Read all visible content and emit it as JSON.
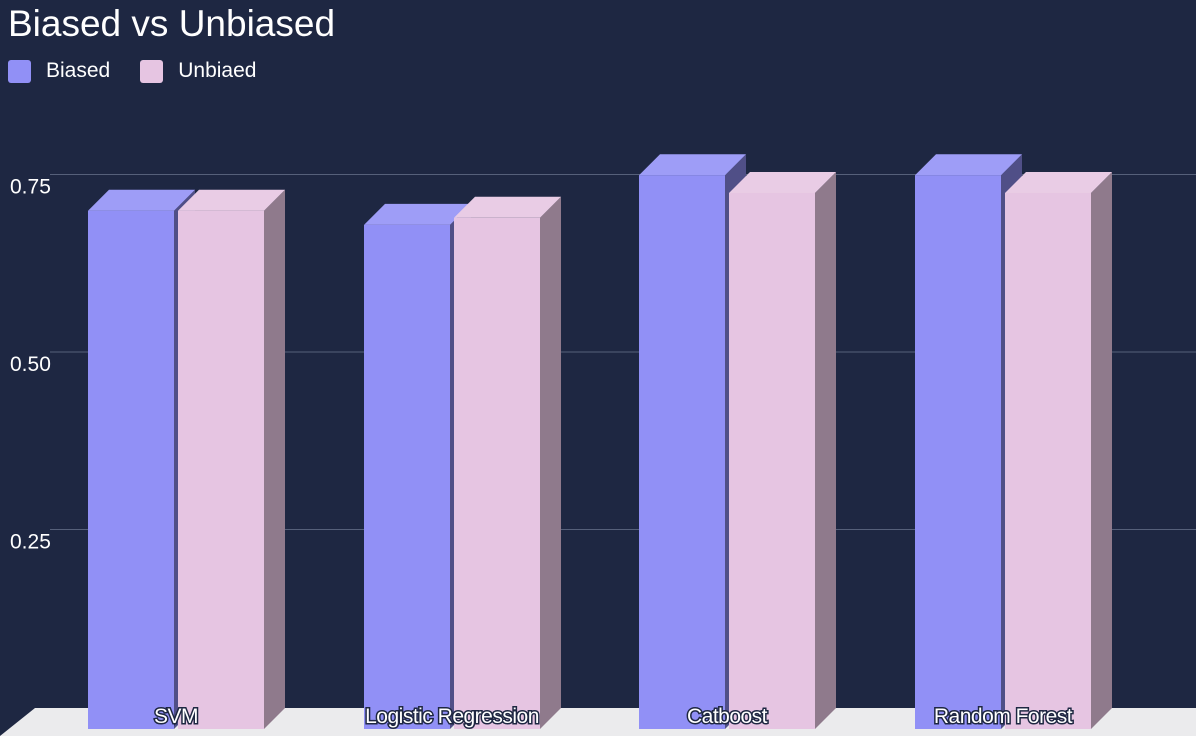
{
  "chart_data": {
    "type": "bar",
    "title": "Biased vs Unbiased",
    "xlabel": "",
    "ylabel": "",
    "categories": [
      "SVM",
      "Logistic Regression",
      "Catboost",
      "Random Forest"
    ],
    "series": [
      {
        "name": "Biased",
        "color": "#9190f6",
        "values": [
          0.73,
          0.71,
          0.78,
          0.78
        ]
      },
      {
        "name": "Unbiaed",
        "color": "#e6c5e2",
        "values": [
          0.73,
          0.72,
          0.755,
          0.755
        ]
      }
    ],
    "yticks": [
      {
        "value": 0.25,
        "label": "0.25"
      },
      {
        "value": 0.5,
        "label": "0.50"
      },
      {
        "value": 0.75,
        "label": "0.75"
      }
    ],
    "ylim": [
      0,
      0.75
    ],
    "grid": true,
    "legend_position": "top-left",
    "style": "3d-bar"
  }
}
